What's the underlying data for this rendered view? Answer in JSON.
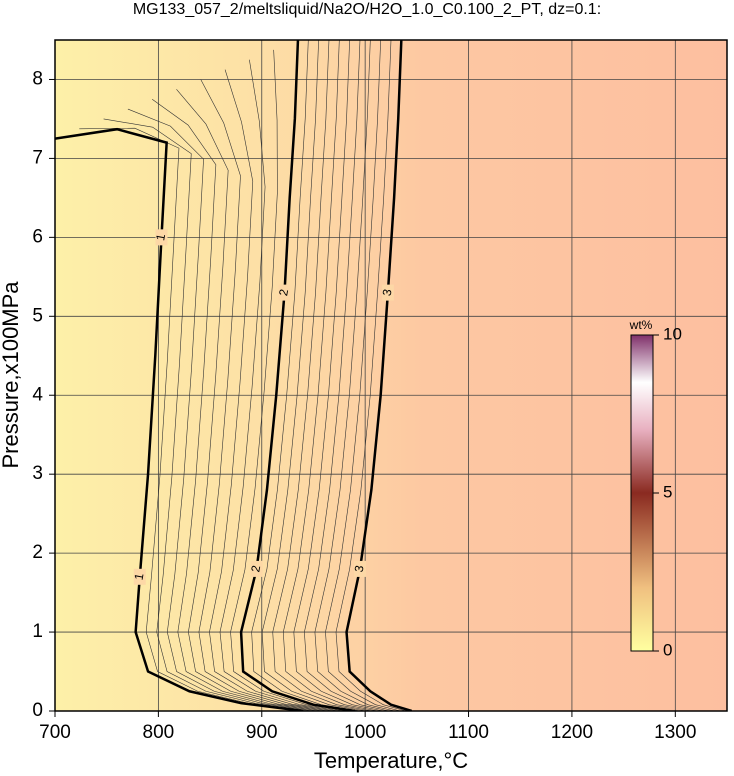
{
  "chart_data": {
    "type": "contour",
    "title": "MG133_057_2/meltsliquid/Na2O/H2O_1.0_C0.100_2_PT, dz=0.1:",
    "x_label": "Temperature,°C",
    "y_label": "Pressure,x100MPa",
    "xlim": [
      700,
      1350
    ],
    "ylim": [
      0,
      8.5
    ],
    "xticks": [
      700,
      800,
      900,
      1000,
      1100,
      1200,
      1300
    ],
    "yticks": [
      0,
      1,
      2,
      3,
      4,
      5,
      6,
      7,
      8
    ],
    "grid": true,
    "series": [
      {
        "name": "1",
        "color": "#000000",
        "x": [
          700,
          760,
          808,
          803,
          797,
          790,
          782,
          778,
          790,
          830,
          880,
          940
        ],
        "y": [
          7.25,
          7.37,
          7.2,
          6,
          4.5,
          3,
          1.7,
          1,
          0.5,
          0.25,
          0.1,
          0
        ]
      },
      {
        "name": "2",
        "color": "#000000",
        "x": [
          935,
          932,
          927,
          922,
          914,
          905,
          895,
          880,
          882,
          910,
          950,
          990
        ],
        "y": [
          8.5,
          7.5,
          6.5,
          5.3,
          4,
          2.8,
          1.8,
          1,
          0.5,
          0.25,
          0.08,
          0
        ]
      },
      {
        "name": "3",
        "color": "#000000",
        "x": [
          1035,
          1032,
          1028,
          1022,
          1015,
          1006,
          995,
          982,
          985,
          1005,
          1025,
          1045
        ],
        "y": [
          8.5,
          7.5,
          6.5,
          5.3,
          4,
          2.8,
          1.8,
          1,
          0.5,
          0.25,
          0.08,
          0
        ]
      }
    ],
    "colorbar": {
      "label": "wt%",
      "lim": [
        0,
        10
      ],
      "ticks": [
        0,
        5,
        10
      ]
    }
  }
}
